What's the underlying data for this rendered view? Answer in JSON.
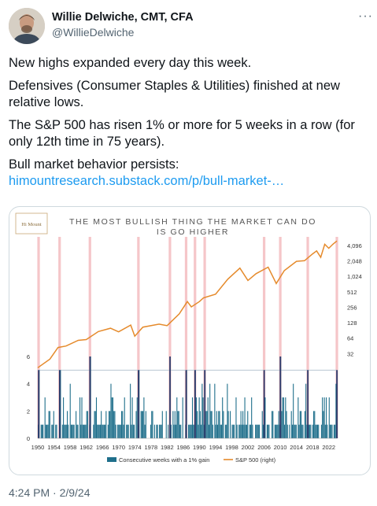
{
  "author": {
    "name": "Willie Delwiche, CMT, CFA",
    "handle": "@WillieDelwiche",
    "avatar_icon": "person-avatar-icon"
  },
  "more_icon": "more-horizontal-icon",
  "tweet": {
    "paragraphs": [
      "New highs expanded every day this week.",
      "Defensives (Consumer Staples & Utilities) finished at new relative lows.",
      "The S&P 500 has risen 1% or more for 5 weeks in a row (for only 12th time in 75 years).",
      "Bull market behavior persists:"
    ],
    "link_text": "himountresearch.substack.com/p/bull-market-…"
  },
  "timestamp": "4:24 PM · 2/9/24",
  "chart_data": {
    "type": "bar",
    "title": "THE MOST BULLISH THING THE MARKET CAN DO IS GO HIGHER",
    "logo_text": "Hi Mount",
    "x_ticks": [
      "1950",
      "1954",
      "1958",
      "1962",
      "1966",
      "1970",
      "1974",
      "1978",
      "1982",
      "1986",
      "1990",
      "1994",
      "1998",
      "2002",
      "2006",
      "2010",
      "2014",
      "2018",
      "2022"
    ],
    "xlim": [
      1950,
      2024
    ],
    "left_axis": {
      "ticks": [
        0,
        2,
        4,
        6
      ],
      "ylim": [
        0,
        6
      ]
    },
    "right_axis": {
      "scale": "log",
      "ticks": [
        32,
        64,
        128,
        256,
        512,
        1024,
        2048,
        4096
      ],
      "ylim": [
        16,
        6000
      ]
    },
    "threshold": 5,
    "legend": [
      "Consecutive weeks with a 1% gain",
      "S&P 500 (right)"
    ],
    "legend_position": "bottom",
    "highlight_years": [
      1950.2,
      1955.4,
      1962.9,
      1974.9,
      1982.7,
      1986.7,
      1988.9,
      1991.3,
      2006.0,
      2010.0,
      2016.8,
      2024.0
    ],
    "series": [
      {
        "name": "Consecutive weeks with a 1% gain",
        "type": "bar",
        "peaks": [
          {
            "x": 1950.2,
            "y": 5
          },
          {
            "x": 1955.4,
            "y": 5
          },
          {
            "x": 1962.9,
            "y": 6
          },
          {
            "x": 1974.9,
            "y": 5
          },
          {
            "x": 1982.7,
            "y": 6
          },
          {
            "x": 1986.7,
            "y": 5
          },
          {
            "x": 1988.9,
            "y": 5
          },
          {
            "x": 1991.3,
            "y": 5
          },
          {
            "x": 2006.0,
            "y": 5
          },
          {
            "x": 2010.0,
            "y": 6
          },
          {
            "x": 2016.8,
            "y": 5
          },
          {
            "x": 2024.0,
            "y": 5
          }
        ]
      },
      {
        "name": "S&P 500 (right)",
        "type": "line",
        "points": [
          [
            1950,
            17
          ],
          [
            1953,
            25
          ],
          [
            1955,
            42
          ],
          [
            1957,
            45
          ],
          [
            1960,
            58
          ],
          [
            1962,
            60
          ],
          [
            1965,
            86
          ],
          [
            1968,
            100
          ],
          [
            1970,
            85
          ],
          [
            1973,
            115
          ],
          [
            1974,
            70
          ],
          [
            1976,
            105
          ],
          [
            1980,
            120
          ],
          [
            1982,
            112
          ],
          [
            1985,
            190
          ],
          [
            1987,
            330
          ],
          [
            1988,
            260
          ],
          [
            1990,
            330
          ],
          [
            1991,
            390
          ],
          [
            1994,
            460
          ],
          [
            1997,
            900
          ],
          [
            2000,
            1480
          ],
          [
            2002,
            850
          ],
          [
            2004,
            1150
          ],
          [
            2007,
            1540
          ],
          [
            2009,
            740
          ],
          [
            2011,
            1320
          ],
          [
            2014,
            2000
          ],
          [
            2016,
            2060
          ],
          [
            2018,
            2800
          ],
          [
            2019,
            3200
          ],
          [
            2020,
            2400
          ],
          [
            2021,
            4300
          ],
          [
            2022,
            3600
          ],
          [
            2023,
            4300
          ],
          [
            2024,
            4990
          ]
        ]
      }
    ]
  }
}
